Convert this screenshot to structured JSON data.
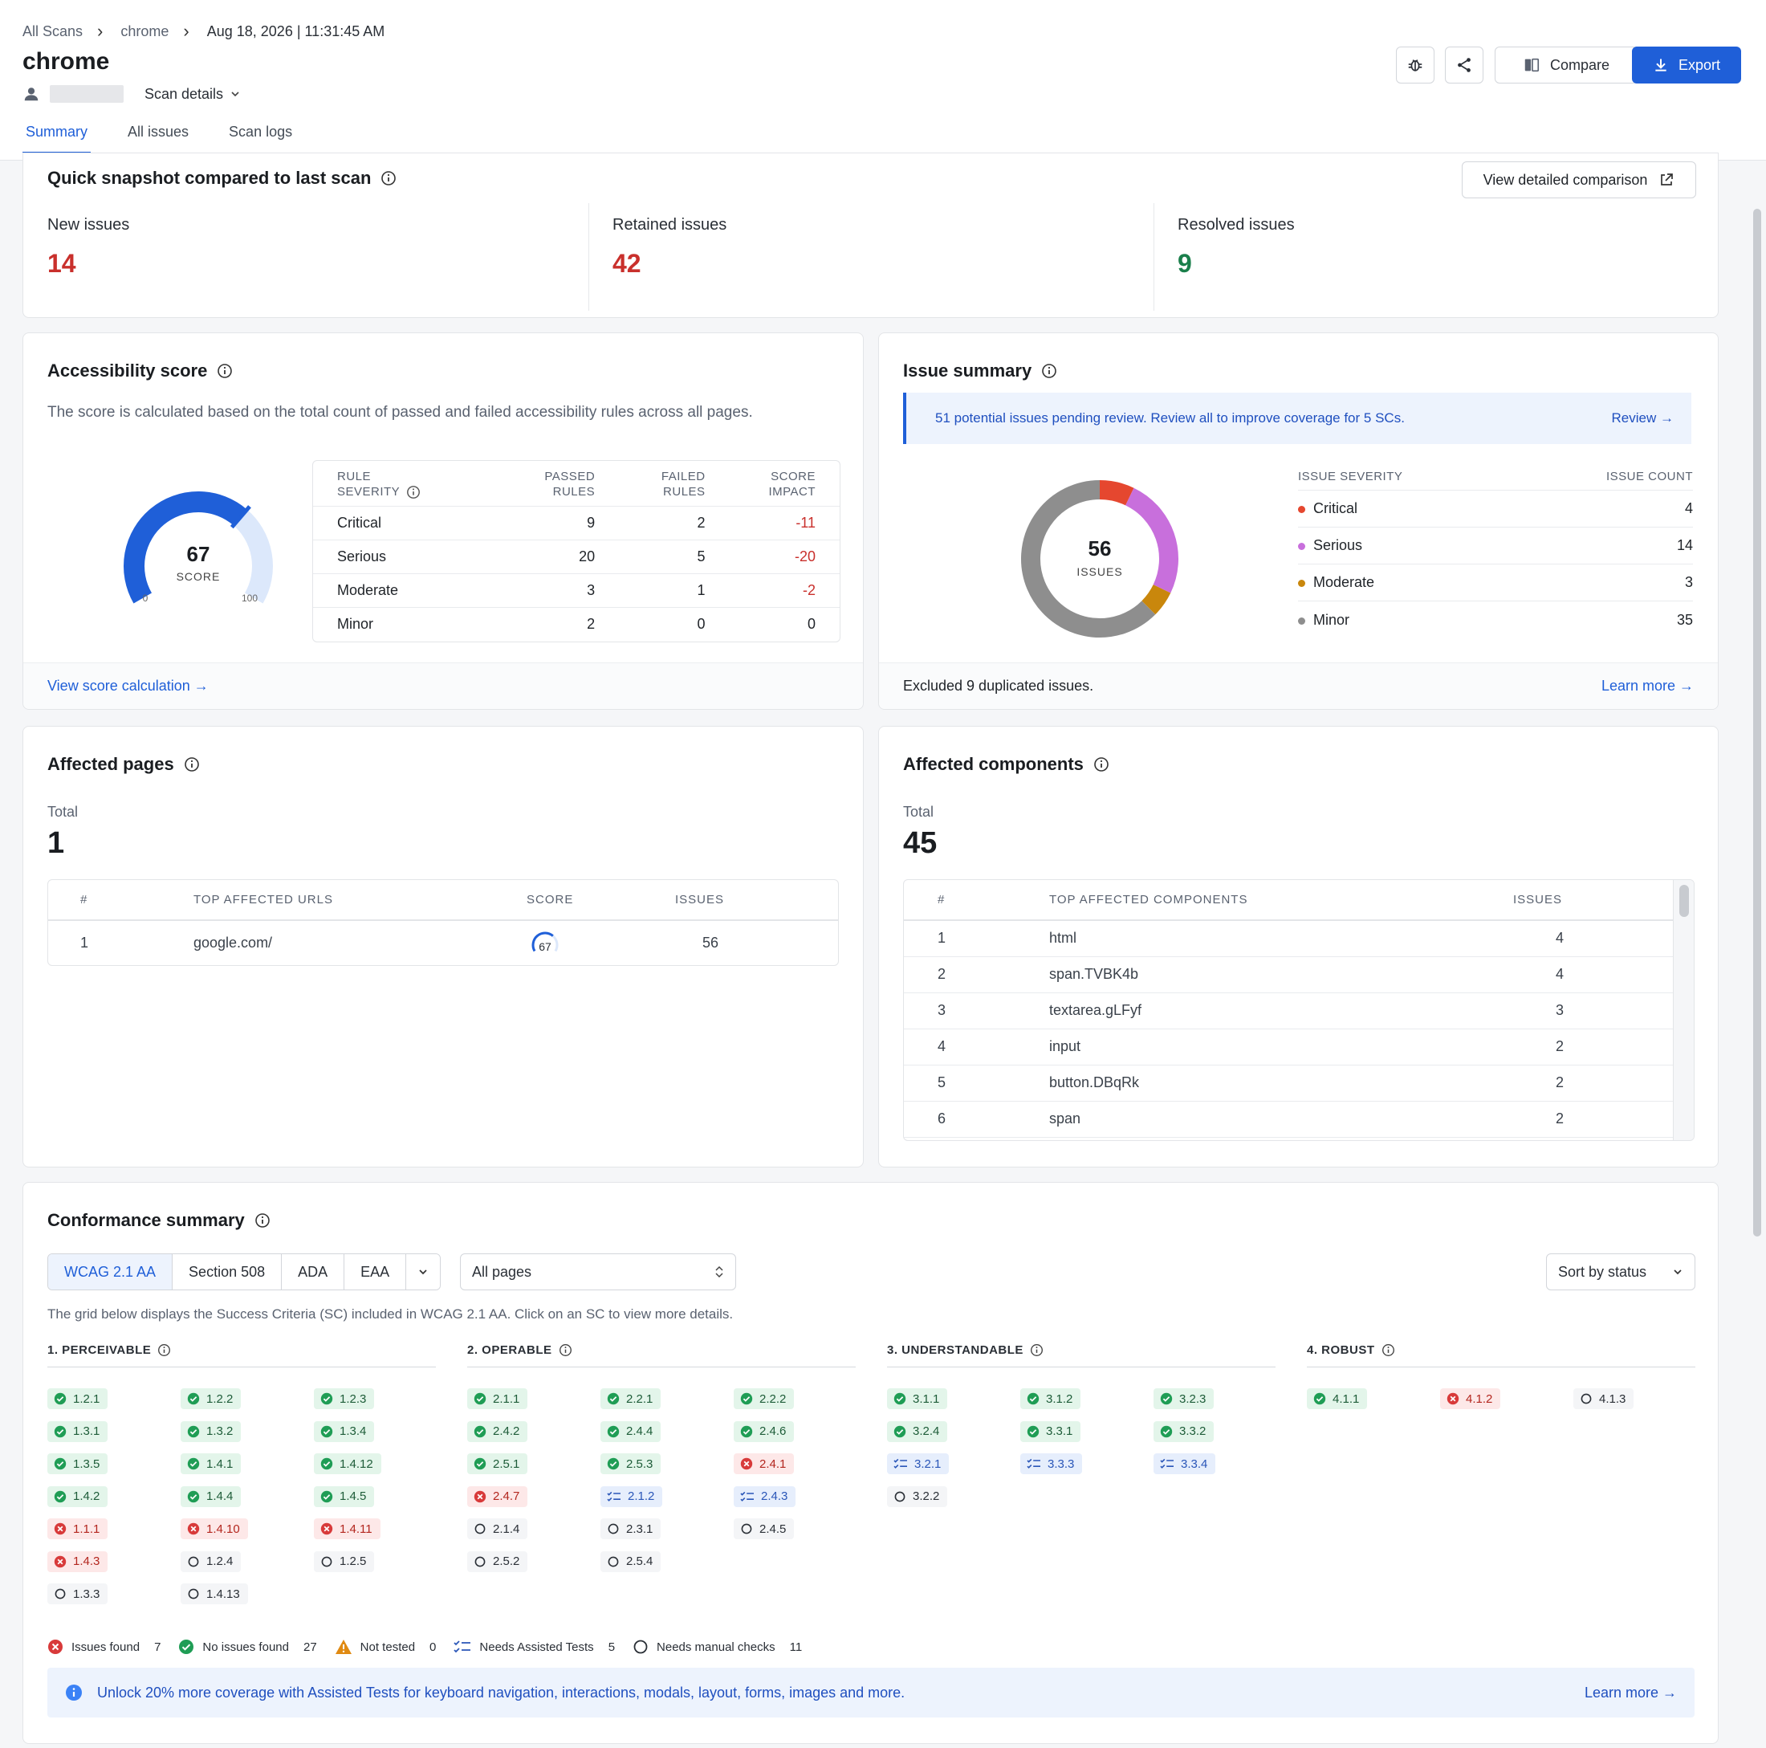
{
  "breadcrumb": [
    "All Scans",
    "chrome",
    "Aug 18, 2026 | 11:31:45 AM"
  ],
  "page_title": "chrome",
  "scan_details_label": "Scan details",
  "tabs": [
    "Summary",
    "All issues",
    "Scan logs"
  ],
  "actions": {
    "compare": "Compare",
    "export": "Export"
  },
  "snapshot": {
    "title": "Quick snapshot compared to last scan",
    "comparison_link": "View detailed comparison",
    "new": {
      "label": "New issues",
      "value": "14"
    },
    "retained": {
      "label": "Retained issues",
      "value": "42"
    },
    "resolved": {
      "label": "Resolved issues",
      "value": "9"
    }
  },
  "accessibility": {
    "title": "Accessibility score",
    "description": "The score is calculated based on the total count of passed and failed accessibility rules across all pages.",
    "score": 67,
    "score_label": "SCORE",
    "gauge_min": "0",
    "gauge_max": "100",
    "headers": [
      "RULE SEVERITY",
      "PASSED RULES",
      "FAILED RULES",
      "SCORE IMPACT"
    ],
    "rows": [
      {
        "severity": "Critical",
        "passed": "9",
        "failed": "2",
        "impact": "-11"
      },
      {
        "severity": "Serious",
        "passed": "20",
        "failed": "5",
        "impact": "-20"
      },
      {
        "severity": "Moderate",
        "passed": "3",
        "failed": "1",
        "impact": "-2"
      },
      {
        "severity": "Minor",
        "passed": "2",
        "failed": "0",
        "impact": "0"
      }
    ],
    "footer_link": "View score calculation →"
  },
  "issue_summary": {
    "title": "Issue summary",
    "banner": "51 potential issues pending review. Review all to improve coverage for 5 SCs.",
    "banner_link": "Review →",
    "total": "56",
    "total_label": "ISSUES",
    "headers": [
      "ISSUE SEVERITY",
      "ISSUE COUNT"
    ],
    "rows": [
      {
        "name": "Critical",
        "count": 4,
        "color": "#e5472f"
      },
      {
        "name": "Serious",
        "count": 14,
        "color": "#c86fdc"
      },
      {
        "name": "Moderate",
        "count": 3,
        "color": "#c9870c"
      },
      {
        "name": "Minor",
        "count": 35,
        "color": "#8e8e8e"
      }
    ],
    "footer_text": "Excluded 9 duplicated issues.",
    "footer_link": "Learn more →"
  },
  "affected_pages": {
    "title": "Affected pages",
    "total_label": "Total",
    "total": "1",
    "headers": [
      "#",
      "TOP AFFECTED URLS",
      "SCORE",
      "ISSUES"
    ],
    "rows": [
      {
        "n": "1",
        "url": "google.com/",
        "score": "67",
        "score_value": 67,
        "issues": "56"
      }
    ]
  },
  "affected_components": {
    "title": "Affected components",
    "total_label": "Total",
    "total": "45",
    "headers": [
      "#",
      "TOP AFFECTED COMPONENTS",
      "ISSUES"
    ],
    "rows": [
      {
        "n": "1",
        "name": "html",
        "issues": "4"
      },
      {
        "n": "2",
        "name": "span.TVBK4b",
        "issues": "4"
      },
      {
        "n": "3",
        "name": "textarea.gLFyf",
        "issues": "3"
      },
      {
        "n": "4",
        "name": "input",
        "issues": "2"
      },
      {
        "n": "5",
        "name": "button.DBqRk",
        "issues": "2"
      },
      {
        "n": "6",
        "name": "span",
        "issues": "2"
      }
    ]
  },
  "conformance": {
    "title": "Conformance summary",
    "standards": [
      "WCAG 2.1 AA",
      "Section 508",
      "ADA",
      "EAA"
    ],
    "pages_select": "All pages",
    "sort_select": "Sort by status",
    "description": "The grid below displays the Success Criteria (SC) included in WCAG 2.1 AA. Click on an SC to view more details.",
    "categories": [
      {
        "title": "1. PERCEIVABLE",
        "items": [
          {
            "id": "1.2.1",
            "s": "pass"
          },
          {
            "id": "1.2.2",
            "s": "pass"
          },
          {
            "id": "1.2.3",
            "s": "pass"
          },
          {
            "id": "1.3.1",
            "s": "pass"
          },
          {
            "id": "1.3.2",
            "s": "pass"
          },
          {
            "id": "1.3.4",
            "s": "pass"
          },
          {
            "id": "1.3.5",
            "s": "pass"
          },
          {
            "id": "1.4.1",
            "s": "pass"
          },
          {
            "id": "1.4.12",
            "s": "pass"
          },
          {
            "id": "1.4.2",
            "s": "pass"
          },
          {
            "id": "1.4.4",
            "s": "pass"
          },
          {
            "id": "1.4.5",
            "s": "pass"
          },
          {
            "id": "1.1.1",
            "s": "fail"
          },
          {
            "id": "1.4.10",
            "s": "fail"
          },
          {
            "id": "1.4.11",
            "s": "fail"
          },
          {
            "id": "1.4.3",
            "s": "fail"
          },
          {
            "id": "1.2.4",
            "s": "manual"
          },
          {
            "id": "1.2.5",
            "s": "manual"
          },
          {
            "id": "1.3.3",
            "s": "manual"
          },
          {
            "id": "1.4.13",
            "s": "manual"
          }
        ]
      },
      {
        "title": "2. OPERABLE",
        "items": [
          {
            "id": "2.1.1",
            "s": "pass"
          },
          {
            "id": "2.2.1",
            "s": "pass"
          },
          {
            "id": "2.2.2",
            "s": "pass"
          },
          {
            "id": "2.4.2",
            "s": "pass"
          },
          {
            "id": "2.4.4",
            "s": "pass"
          },
          {
            "id": "2.4.6",
            "s": "pass"
          },
          {
            "id": "2.5.1",
            "s": "pass"
          },
          {
            "id": "2.5.3",
            "s": "pass"
          },
          {
            "id": "2.4.1",
            "s": "fail"
          },
          {
            "id": "2.4.7",
            "s": "fail"
          },
          {
            "id": "2.1.2",
            "s": "assist"
          },
          {
            "id": "2.4.3",
            "s": "assist"
          },
          {
            "id": "2.1.4",
            "s": "manual"
          },
          {
            "id": "2.3.1",
            "s": "manual"
          },
          {
            "id": "2.4.5",
            "s": "manual"
          },
          {
            "id": "2.5.2",
            "s": "manual"
          },
          {
            "id": "2.5.4",
            "s": "manual"
          }
        ]
      },
      {
        "title": "3. UNDERSTANDABLE",
        "items": [
          {
            "id": "3.1.1",
            "s": "pass"
          },
          {
            "id": "3.1.2",
            "s": "pass"
          },
          {
            "id": "3.2.3",
            "s": "pass"
          },
          {
            "id": "3.2.4",
            "s": "pass"
          },
          {
            "id": "3.3.1",
            "s": "pass"
          },
          {
            "id": "3.3.2",
            "s": "pass"
          },
          {
            "id": "3.2.1",
            "s": "assist"
          },
          {
            "id": "3.3.3",
            "s": "assist"
          },
          {
            "id": "3.3.4",
            "s": "assist"
          },
          {
            "id": "3.2.2",
            "s": "manual"
          }
        ]
      },
      {
        "title": "4. ROBUST",
        "items": [
          {
            "id": "4.1.1",
            "s": "pass"
          },
          {
            "id": "4.1.2",
            "s": "fail"
          },
          {
            "id": "4.1.3",
            "s": "manual"
          }
        ]
      }
    ],
    "legend": [
      {
        "label": "Issues found",
        "count": "7",
        "icon": "x-circle-icon"
      },
      {
        "label": "No issues found",
        "count": "27",
        "icon": "check-circle-icon"
      },
      {
        "label": "Not tested",
        "count": "0",
        "icon": "warning-triangle-icon"
      },
      {
        "label": "Needs Assisted Tests",
        "count": "5",
        "icon": "checklist-icon"
      },
      {
        "label": "Needs manual checks",
        "count": "11",
        "icon": "empty-circle-icon"
      }
    ],
    "unlock_text": "Unlock 20% more coverage with Assisted Tests for keyboard navigation, interactions, modals, layout, forms, images and more.",
    "unlock_link": "Learn more →"
  },
  "colors": {
    "accent": "#1f5fd8",
    "danger": "#c9302c",
    "success": "#1a7f4b"
  }
}
